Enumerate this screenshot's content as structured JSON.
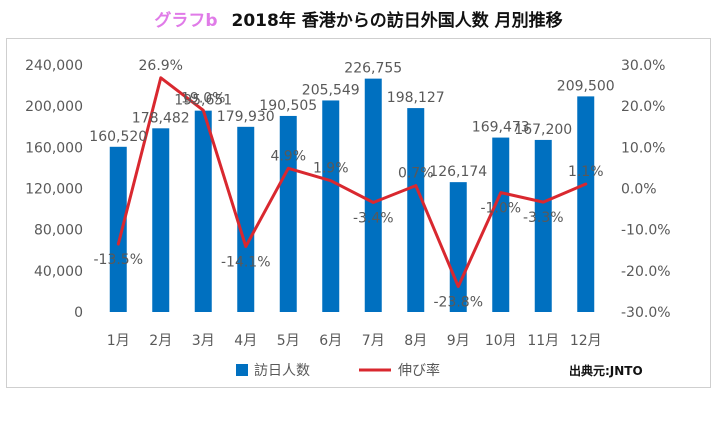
{
  "header": {
    "tag": "グラフb",
    "title": "2018年 香港からの訪日外国人数 月別推移"
  },
  "source": "出典元:JNTO",
  "chart_data": {
    "type": "bar+line",
    "categories": [
      "1月",
      "2月",
      "3月",
      "4月",
      "5月",
      "6月",
      "7月",
      "8月",
      "9月",
      "10月",
      "11月",
      "12月"
    ],
    "series": [
      {
        "name": "訪日人数",
        "type": "bar",
        "axis": "left",
        "color": "#0070c0",
        "values": [
          160520,
          178482,
          195651,
          179930,
          190505,
          205549,
          226755,
          198127,
          126174,
          169473,
          167200,
          209500
        ],
        "labels": [
          "160,520",
          "178,482",
          "195,651",
          "179,930",
          "190,505",
          "205,549",
          "226,755",
          "198,127",
          "126,174",
          "169,473",
          "167,200",
          "209,500"
        ]
      },
      {
        "name": "伸び率",
        "type": "line",
        "axis": "right",
        "color": "#d9282f",
        "values": [
          -13.5,
          26.9,
          19.0,
          -14.1,
          4.9,
          1.9,
          -3.4,
          0.7,
          -23.8,
          -1.0,
          -3.3,
          1.1
        ],
        "labels": [
          "-13.5%",
          "26.9%",
          "19.0%",
          "-14.1%",
          "4.9%",
          "1.9%",
          "-3.4%",
          "0.7%",
          "-23.8%",
          "-1.0%",
          "-3.3%",
          "1.1%"
        ]
      }
    ],
    "y_left": {
      "range": [
        0,
        240000
      ],
      "ticks": [
        0,
        40000,
        80000,
        120000,
        160000,
        200000,
        240000
      ],
      "tick_labels": [
        "0",
        "40,000",
        "80,000",
        "120,000",
        "160,000",
        "200,000",
        "240,000"
      ]
    },
    "y_right": {
      "range": [
        -30,
        30
      ],
      "ticks": [
        -30,
        -20,
        -10,
        0,
        10,
        20,
        30
      ],
      "tick_labels": [
        "-30.0%",
        "-20.0%",
        "-10.0%",
        "0.0%",
        "10.0%",
        "20.0%",
        "30.0%"
      ]
    },
    "grid": false,
    "legend_position": "bottom"
  }
}
